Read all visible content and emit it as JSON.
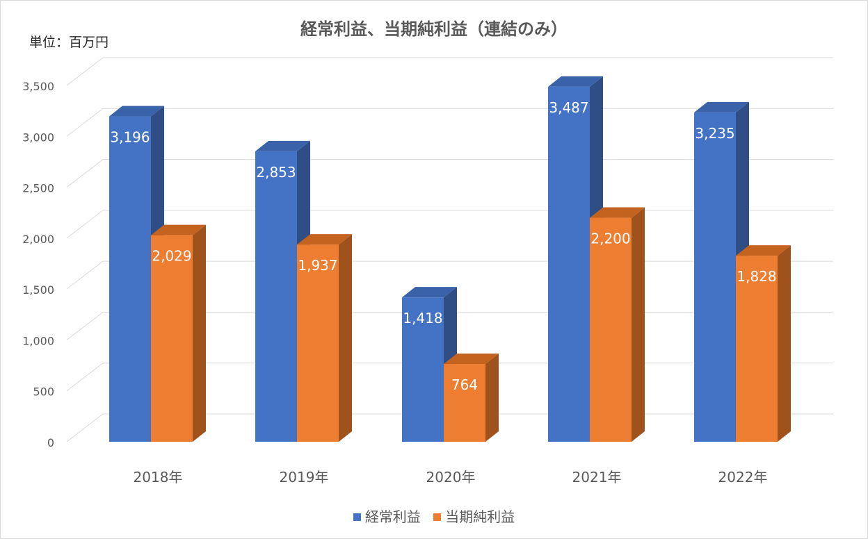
{
  "title": "経常利益、当期純利益（連結のみ）",
  "unit_label": "単位：百万円",
  "colors": {
    "series1": "#4472c4",
    "series2": "#ed7d31",
    "grid": "#d9d9d9",
    "text": "#595959"
  },
  "chart_data": {
    "type": "bar",
    "title": "経常利益、当期純利益（連結のみ）",
    "categories": [
      "2018年",
      "2019年",
      "2020年",
      "2021年",
      "2022年"
    ],
    "series": [
      {
        "name": "経常利益",
        "values": [
          3196,
          2853,
          1418,
          3487,
          3235
        ],
        "labels": [
          "3,196",
          "2,853",
          "1,418",
          "3,487",
          "3,235"
        ]
      },
      {
        "name": "当期純利益",
        "values": [
          2029,
          1937,
          764,
          2200,
          1828
        ],
        "labels": [
          "2,029",
          "1,937",
          "764",
          "2,200",
          "1,828"
        ]
      }
    ],
    "ylim": [
      0,
      3500
    ],
    "yticks": [
      0,
      500,
      1000,
      1500,
      2000,
      2500,
      3000,
      3500
    ],
    "ytick_labels": [
      "0",
      "500",
      "1,000",
      "1,500",
      "2,000",
      "2,500",
      "3,000",
      "3,500"
    ],
    "grid": true,
    "legend_position": "bottom"
  }
}
